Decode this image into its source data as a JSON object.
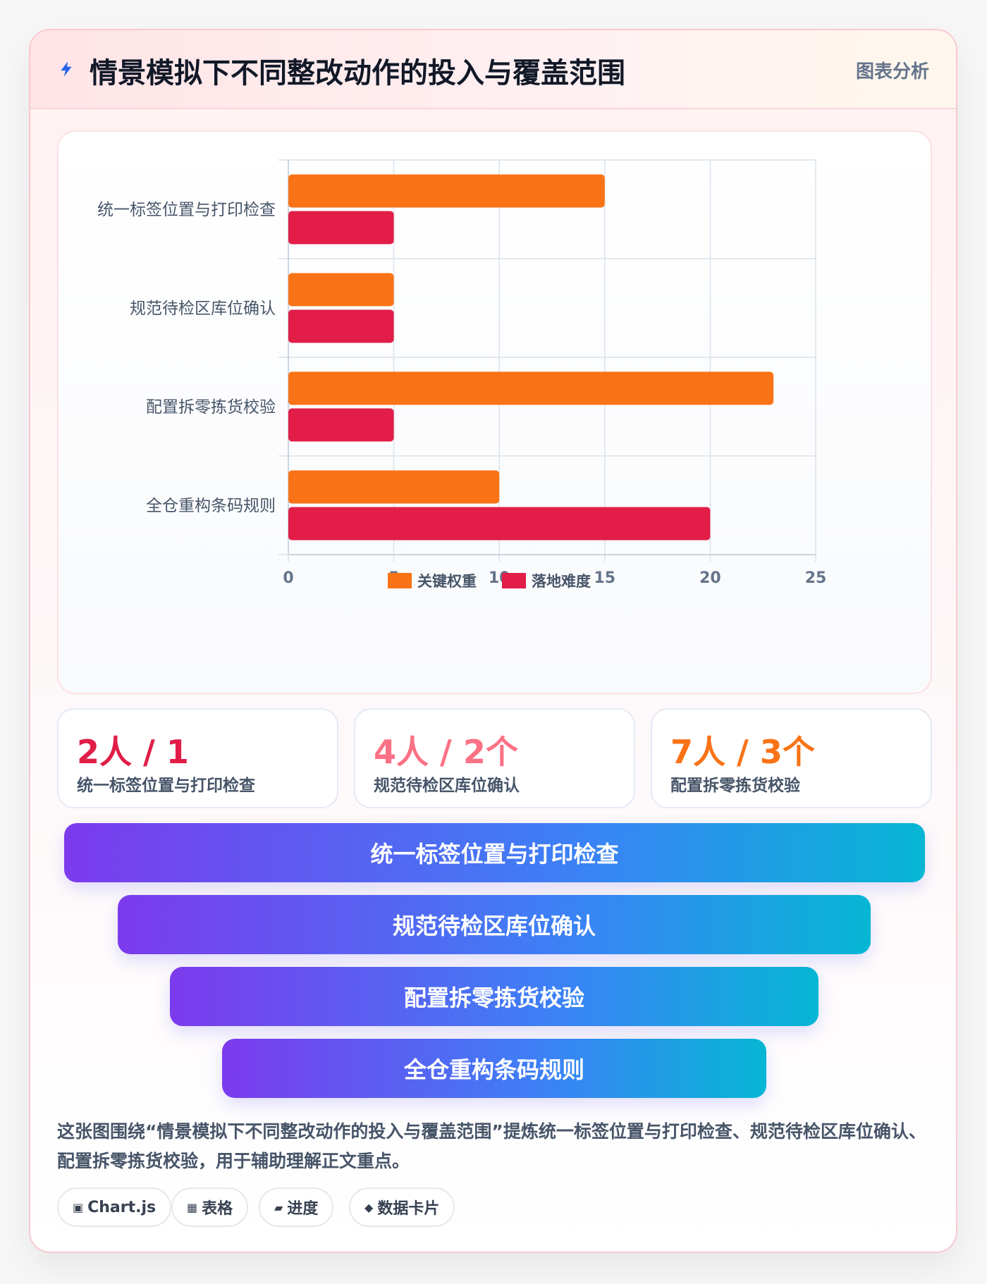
{
  "header": {
    "title": "情景模拟下不同整改动作的投入与覆盖范围",
    "right_label": "图表分析",
    "icon": "lightning-icon",
    "accent": "#2563eb"
  },
  "chart_data": {
    "type": "bar",
    "orientation": "horizontal",
    "categories": [
      "统一标签位置与打印检查",
      "规范待检区库位确认",
      "配置拆零拣货校验",
      "全仓重构条码规则"
    ],
    "series": [
      {
        "name": "关键权重",
        "values": [
          15,
          5,
          23,
          10
        ],
        "color": "#f97316"
      },
      {
        "name": "落地难度",
        "values": [
          5,
          5,
          5,
          20
        ],
        "color": "#e11d48"
      }
    ],
    "xlim": [
      0,
      25
    ],
    "xticks": [
      0,
      5,
      10,
      15,
      20,
      25
    ],
    "grid": true,
    "legend_position": "bottom"
  },
  "stats": [
    {
      "value": "2人 / 1",
      "label": "统一标签位置与打印检查",
      "color": "#e11d48"
    },
    {
      "value": "4人 / 2个",
      "label": "规范待检区库位确认",
      "color": "#fb7185"
    },
    {
      "value": "7人 / 3个",
      "label": "配置拆零拣货校验",
      "color": "#f97316"
    }
  ],
  "funnel": [
    {
      "label": "统一标签位置与打印检查"
    },
    {
      "label": "规范待检区库位确认"
    },
    {
      "label": "配置拆零拣货校验"
    },
    {
      "label": "全仓重构条码规则"
    }
  ],
  "summary": "这张图围绕“情景模拟下不同整改动作的投入与覆盖范围”提炼统一标签位置与打印检查、规范待检区库位确认、配置拆零拣货校验，用于辅助理解正文重点。",
  "tags": [
    {
      "icon": "▣",
      "icon_name": "chart-icon",
      "label": "Chart.js"
    },
    {
      "icon": "▦",
      "icon_name": "table-icon",
      "label": "表格"
    },
    {
      "icon": "▰",
      "icon_name": "progress-icon",
      "label": "进度"
    },
    {
      "icon": "◆",
      "icon_name": "data-card-icon",
      "label": "数据卡片"
    }
  ]
}
